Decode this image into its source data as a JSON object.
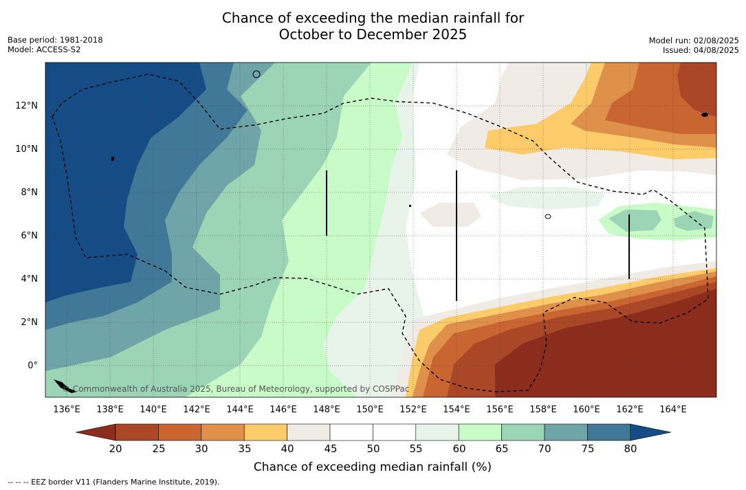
{
  "title_line1": "Chance of exceeding the median rainfall for",
  "title_line2": "October to December 2025",
  "base_period": "Base period: 1981-2018",
  "model": "Model: ACCESS-S2",
  "model_run": "Model run: 02/08/2025",
  "issued": "Issued: 04/08/2025",
  "lat_labels": [
    "12°N",
    "10°N",
    "8°N",
    "6°N",
    "4°N",
    "2°N",
    "0°"
  ],
  "lon_labels": [
    "136°E",
    "138°E",
    "140°E",
    "142°E",
    "144°E",
    "146°E",
    "148°E",
    "150°E",
    "152°E",
    "154°E",
    "156°E",
    "158°E",
    "160°E",
    "162°E",
    "164°E"
  ],
  "credit": "© Commonwealth of Australia 2025, Bureau of Meteorology, supported by COSPPac",
  "colorbar": {
    "labels": [
      "20",
      "25",
      "30",
      "35",
      "40",
      "45",
      "50",
      "55",
      "60",
      "65",
      "70",
      "75",
      "80"
    ],
    "title": "Chance of exceeding median rainfall (%)",
    "colors": [
      "#8b2c1d",
      "#aa4727",
      "#c96531",
      "#df904a",
      "#fdcc6a",
      "#f0ebe5",
      "#ffffff",
      "#ffffff",
      "#e8f4ea",
      "#c8fbc8",
      "#9cd4b6",
      "#6fa5a8",
      "#417898",
      "#164c85"
    ]
  },
  "footer": "--  --  -- EEZ border V11 (Flanders Marine Institute, 2019)."
}
